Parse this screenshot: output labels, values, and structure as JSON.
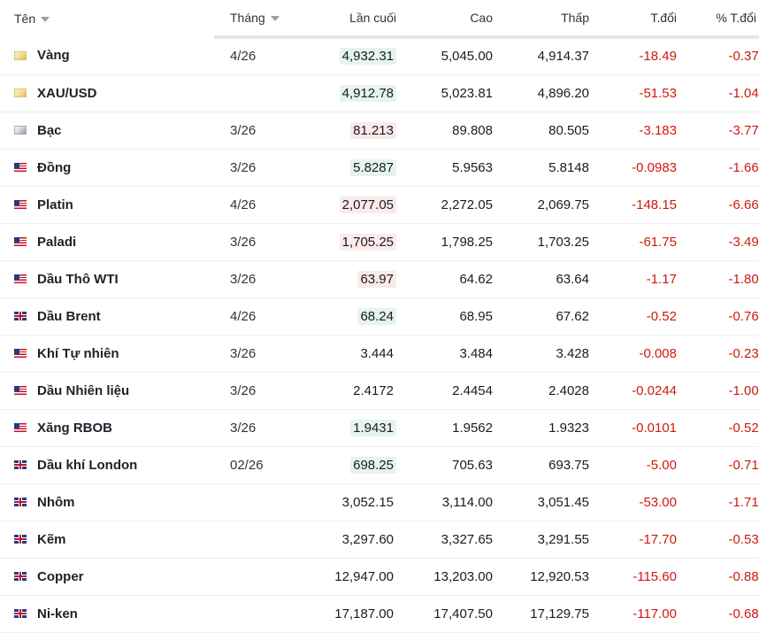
{
  "header": {
    "name": "Tên",
    "month": "Tháng",
    "last": "Lần cuối",
    "high": "Cao",
    "low": "Thấp",
    "change": "T.đổi",
    "pct_change": "% T.đổi"
  },
  "colors": {
    "negative": "#d0180b",
    "highlight_up": "#e6f4ec",
    "highlight_down": "#fbeaea"
  },
  "rows": [
    {
      "flag": "gold-icon",
      "name": "Vàng",
      "month": "4/26",
      "last": "4,932.31",
      "hl": "green",
      "high": "5,045.00",
      "low": "4,914.37",
      "change": "-18.49",
      "pct": "-0.37%"
    },
    {
      "flag": "gold-icon",
      "name": "XAU/USD",
      "month": "",
      "last": "4,912.78",
      "hl": "green",
      "high": "5,023.81",
      "low": "4,896.20",
      "change": "-51.53",
      "pct": "-1.04%"
    },
    {
      "flag": "silver-icon",
      "name": "Bạc",
      "month": "3/26",
      "last": "81.213",
      "hl": "red",
      "high": "89.808",
      "low": "80.505",
      "change": "-3.183",
      "pct": "-3.77%"
    },
    {
      "flag": "us-flag-icon",
      "name": "Đồng",
      "month": "3/26",
      "last": "5.8287",
      "hl": "green",
      "high": "5.9563",
      "low": "5.8148",
      "change": "-0.0983",
      "pct": "-1.66%"
    },
    {
      "flag": "us-flag-icon",
      "name": "Platin",
      "month": "4/26",
      "last": "2,077.05",
      "hl": "red",
      "high": "2,272.05",
      "low": "2,069.75",
      "change": "-148.15",
      "pct": "-6.66%"
    },
    {
      "flag": "us-flag-icon",
      "name": "Paladi",
      "month": "3/26",
      "last": "1,705.25",
      "hl": "red",
      "high": "1,798.25",
      "low": "1,703.25",
      "change": "-61.75",
      "pct": "-3.49%"
    },
    {
      "flag": "us-flag-icon",
      "name": "Dầu Thô WTI",
      "month": "3/26",
      "last": "63.97",
      "hl": "red",
      "high": "64.62",
      "low": "63.64",
      "change": "-1.17",
      "pct": "-1.80%"
    },
    {
      "flag": "uk-flag-icon",
      "name": "Dầu Brent",
      "month": "4/26",
      "last": "68.24",
      "hl": "green",
      "high": "68.95",
      "low": "67.62",
      "change": "-0.52",
      "pct": "-0.76%"
    },
    {
      "flag": "us-flag-icon",
      "name": "Khí Tự nhiên",
      "month": "3/26",
      "last": "3.444",
      "hl": "",
      "high": "3.484",
      "low": "3.428",
      "change": "-0.008",
      "pct": "-0.23%"
    },
    {
      "flag": "us-flag-icon",
      "name": "Dầu Nhiên liệu",
      "month": "3/26",
      "last": "2.4172",
      "hl": "",
      "high": "2.4454",
      "low": "2.4028",
      "change": "-0.0244",
      "pct": "-1.00%"
    },
    {
      "flag": "us-flag-icon",
      "name": "Xăng RBOB",
      "month": "3/26",
      "last": "1.9431",
      "hl": "green",
      "high": "1.9562",
      "low": "1.9323",
      "change": "-0.0101",
      "pct": "-0.52%"
    },
    {
      "flag": "uk-flag-icon",
      "name": "Dầu khí London",
      "month": "02/26",
      "last": "698.25",
      "hl": "green",
      "high": "705.63",
      "low": "693.75",
      "change": "-5.00",
      "pct": "-0.71%"
    },
    {
      "flag": "uk-flag-icon",
      "name": "Nhôm",
      "month": "",
      "last": "3,052.15",
      "hl": "",
      "high": "3,114.00",
      "low": "3,051.45",
      "change": "-53.00",
      "pct": "-1.71%"
    },
    {
      "flag": "uk-flag-icon",
      "name": "Kẽm",
      "month": "",
      "last": "3,297.60",
      "hl": "",
      "high": "3,327.65",
      "low": "3,291.55",
      "change": "-17.70",
      "pct": "-0.53%"
    },
    {
      "flag": "uk-flag-icon",
      "name": "Copper",
      "month": "",
      "last": "12,947.00",
      "hl": "",
      "high": "13,203.00",
      "low": "12,920.53",
      "change": "-115.60",
      "pct": "-0.88%"
    },
    {
      "flag": "uk-flag-icon",
      "name": "Ni-ken",
      "month": "",
      "last": "17,187.00",
      "hl": "",
      "high": "17,407.50",
      "low": "17,129.75",
      "change": "-117.00",
      "pct": "-0.68%"
    }
  ]
}
